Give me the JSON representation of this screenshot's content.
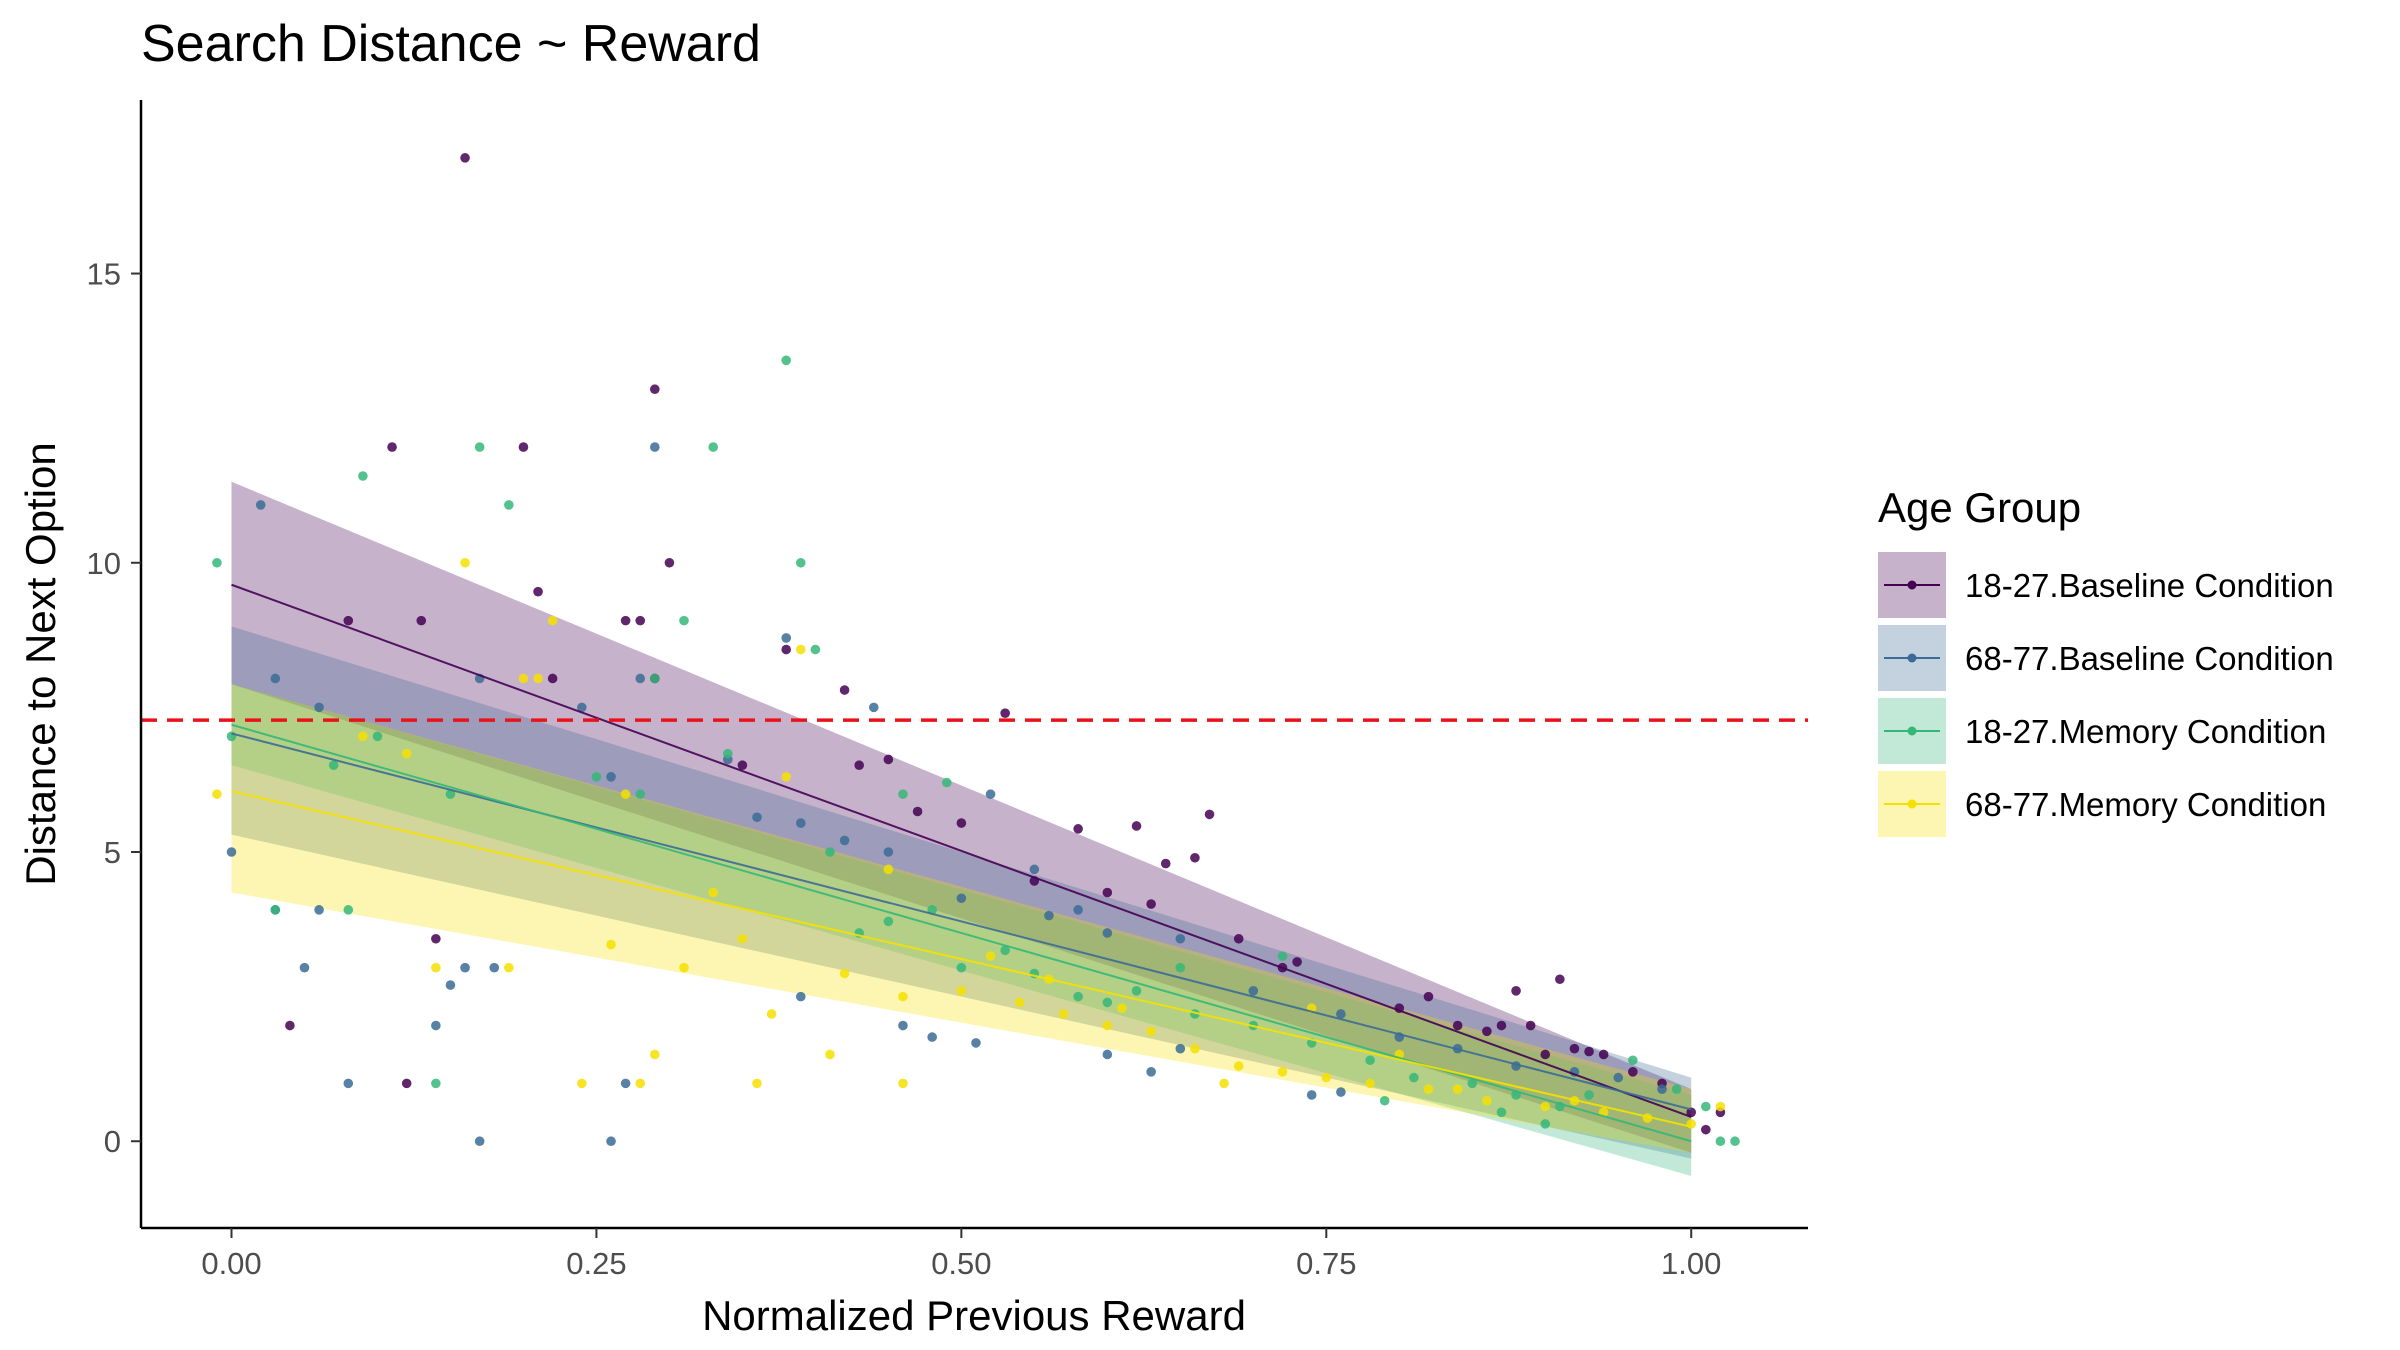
{
  "chart_data": {
    "type": "scatter",
    "title": "Search Distance ~ Reward",
    "xlabel": "Normalized Previous Reward",
    "ylabel": "Distance to Next Option",
    "xlim": [
      -0.062,
      1.08
    ],
    "ylim": [
      -1.5,
      18.0
    ],
    "x_ticks": [
      0,
      0.25,
      0.5,
      0.75,
      1.0
    ],
    "x_tick_labels": [
      "0.00",
      "0.25",
      "0.50",
      "0.75",
      "1.00"
    ],
    "y_ticks": [
      0,
      5,
      10,
      15
    ],
    "y_tick_labels": [
      "0",
      "5",
      "10",
      "15"
    ],
    "grid": false,
    "reference_line": {
      "y": 7.28,
      "style": "dashed",
      "color": "#e8141a"
    },
    "legend": {
      "title": "Age Group",
      "position": "right"
    },
    "series": [
      {
        "name": "18-27.Baseline Condition",
        "color": "#440154",
        "fit": {
          "intercept": 9.62,
          "slope": -9.2,
          "lower": [
            7.9,
            -0.2
          ],
          "upper": [
            11.4,
            0.9
          ]
        },
        "points": [
          [
            0.16,
            17.0
          ],
          [
            0.29,
            13.0
          ],
          [
            0.11,
            12.0
          ],
          [
            0.2,
            12.0
          ],
          [
            0.3,
            10.0
          ],
          [
            0.21,
            9.5
          ],
          [
            0.08,
            9.0
          ],
          [
            0.27,
            9.0
          ],
          [
            0.28,
            9.0
          ],
          [
            0.13,
            9.0
          ],
          [
            0.22,
            8.0
          ],
          [
            0.29,
            8.0
          ],
          [
            0.38,
            8.5
          ],
          [
            0.42,
            7.8
          ],
          [
            0.53,
            7.4
          ],
          [
            0.45,
            6.6
          ],
          [
            0.43,
            6.5
          ],
          [
            0.5,
            5.5
          ],
          [
            0.58,
            5.4
          ],
          [
            0.62,
            5.45
          ],
          [
            0.67,
            5.65
          ],
          [
            0.66,
            4.9
          ],
          [
            0.64,
            4.8
          ],
          [
            0.6,
            4.3
          ],
          [
            0.69,
            3.5
          ],
          [
            0.72,
            3.0
          ],
          [
            0.82,
            2.5
          ],
          [
            0.84,
            2.0
          ],
          [
            0.87,
            2.0
          ],
          [
            0.88,
            2.6
          ],
          [
            0.89,
            2.0
          ],
          [
            0.91,
            2.8
          ],
          [
            0.92,
            1.6
          ],
          [
            0.93,
            1.55
          ],
          [
            0.94,
            1.5
          ],
          [
            0.96,
            1.2
          ],
          [
            0.98,
            1.0
          ],
          [
            1.0,
            0.5
          ],
          [
            1.02,
            0.5
          ],
          [
            1.01,
            0.2
          ],
          [
            0.14,
            3.5
          ],
          [
            0.04,
            2.0
          ],
          [
            0.12,
            1.0
          ],
          [
            0.35,
            6.5
          ],
          [
            0.47,
            5.7
          ],
          [
            0.55,
            4.5
          ],
          [
            0.63,
            4.1
          ],
          [
            0.73,
            3.1
          ],
          [
            0.8,
            2.3
          ],
          [
            0.86,
            1.9
          ],
          [
            0.9,
            1.5
          ]
        ]
      },
      {
        "name": "68-77.Baseline Condition",
        "color": "#3b6b96",
        "fit": {
          "intercept": 7.05,
          "slope": -6.5,
          "lower": [
            5.3,
            -0.3
          ],
          "upper": [
            8.9,
            1.1
          ]
        },
        "points": [
          [
            0.02,
            11.0
          ],
          [
            0.29,
            12.0
          ],
          [
            0.38,
            8.7
          ],
          [
            0.03,
            8.0
          ],
          [
            0.06,
            7.5
          ],
          [
            0.44,
            7.5
          ],
          [
            0.17,
            8.0
          ],
          [
            0.28,
            8.0
          ],
          [
            0.24,
            7.5
          ],
          [
            0.26,
            6.3
          ],
          [
            0.36,
            5.6
          ],
          [
            0.39,
            5.5
          ],
          [
            0.45,
            5.0
          ],
          [
            0.52,
            6.0
          ],
          [
            0.55,
            4.7
          ],
          [
            0.0,
            5.0
          ],
          [
            0.03,
            4.0
          ],
          [
            0.06,
            4.0
          ],
          [
            0.05,
            3.0
          ],
          [
            0.15,
            2.7
          ],
          [
            0.14,
            2.0
          ],
          [
            0.18,
            3.0
          ],
          [
            0.16,
            3.0
          ],
          [
            0.08,
            1.0
          ],
          [
            0.17,
            0.0
          ],
          [
            0.26,
            0.0
          ],
          [
            0.27,
            1.0
          ],
          [
            0.39,
            2.5
          ],
          [
            0.46,
            2.0
          ],
          [
            0.48,
            1.8
          ],
          [
            0.51,
            1.7
          ],
          [
            0.6,
            1.5
          ],
          [
            0.63,
            1.2
          ],
          [
            0.65,
            1.6
          ],
          [
            0.74,
            0.8
          ],
          [
            0.76,
            0.85
          ],
          [
            0.6,
            3.6
          ],
          [
            0.58,
            4.0
          ],
          [
            0.65,
            3.5
          ],
          [
            0.7,
            2.6
          ],
          [
            0.76,
            2.2
          ],
          [
            0.8,
            1.8
          ],
          [
            0.84,
            1.6
          ],
          [
            0.88,
            1.3
          ],
          [
            0.92,
            1.2
          ],
          [
            0.95,
            1.1
          ],
          [
            0.98,
            0.9
          ],
          [
            0.34,
            6.6
          ],
          [
            0.42,
            5.2
          ],
          [
            0.5,
            4.2
          ],
          [
            0.56,
            3.9
          ]
        ]
      },
      {
        "name": "18-27.Memory Condition",
        "color": "#35b779",
        "fit": {
          "intercept": 7.2,
          "slope": -7.2,
          "lower": [
            6.5,
            -0.6
          ],
          "upper": [
            7.9,
            0.8
          ]
        },
        "points": [
          [
            -0.01,
            10.0
          ],
          [
            0.09,
            11.5
          ],
          [
            0.17,
            12.0
          ],
          [
            0.19,
            11.0
          ],
          [
            0.33,
            12.0
          ],
          [
            0.38,
            13.5
          ],
          [
            0.39,
            10.0
          ],
          [
            0.31,
            9.0
          ],
          [
            0.4,
            8.5
          ],
          [
            0.0,
            7.0
          ],
          [
            0.07,
            6.5
          ],
          [
            0.1,
            7.0
          ],
          [
            0.15,
            6.0
          ],
          [
            0.25,
            6.3
          ],
          [
            0.28,
            6.0
          ],
          [
            0.34,
            6.7
          ],
          [
            0.41,
            5.0
          ],
          [
            0.46,
            6.0
          ],
          [
            0.49,
            6.2
          ],
          [
            0.08,
            4.0
          ],
          [
            0.14,
            1.0
          ],
          [
            0.03,
            4.0
          ],
          [
            0.29,
            8.0
          ],
          [
            0.45,
            3.8
          ],
          [
            0.5,
            3.0
          ],
          [
            0.55,
            2.9
          ],
          [
            0.58,
            2.5
          ],
          [
            0.62,
            2.6
          ],
          [
            0.66,
            2.2
          ],
          [
            0.7,
            2.0
          ],
          [
            0.74,
            1.7
          ],
          [
            0.78,
            1.4
          ],
          [
            0.81,
            1.1
          ],
          [
            0.85,
            1.0
          ],
          [
            0.88,
            0.8
          ],
          [
            0.91,
            0.6
          ],
          [
            0.93,
            0.8
          ],
          [
            0.96,
            1.4
          ],
          [
            0.99,
            0.9
          ],
          [
            1.01,
            0.6
          ],
          [
            1.02,
            0.0
          ],
          [
            1.03,
            0.0
          ],
          [
            0.87,
            0.5
          ],
          [
            0.9,
            0.3
          ],
          [
            0.79,
            0.7
          ],
          [
            0.65,
            3.0
          ],
          [
            0.6,
            2.4
          ],
          [
            0.53,
            3.3
          ],
          [
            0.48,
            4.0
          ],
          [
            0.43,
            3.6
          ],
          [
            0.72,
            3.2
          ]
        ]
      },
      {
        "name": "68-77.Memory Condition",
        "color": "#f5e100",
        "fit": {
          "intercept": 6.05,
          "slope": -5.8,
          "lower": [
            4.3,
            -0.2
          ],
          "upper": [
            7.9,
            0.9
          ]
        },
        "points": [
          [
            -0.01,
            6.0
          ],
          [
            0.16,
            10.0
          ],
          [
            0.22,
            9.0
          ],
          [
            0.21,
            8.0
          ],
          [
            0.39,
            8.5
          ],
          [
            0.38,
            6.3
          ],
          [
            0.27,
            6.0
          ],
          [
            0.12,
            6.7
          ],
          [
            0.14,
            3.0
          ],
          [
            0.19,
            3.0
          ],
          [
            0.26,
            3.4
          ],
          [
            0.31,
            3.0
          ],
          [
            0.24,
            1.0
          ],
          [
            0.28,
            1.0
          ],
          [
            0.29,
            1.5
          ],
          [
            0.37,
            2.2
          ],
          [
            0.36,
            1.0
          ],
          [
            0.41,
            1.5
          ],
          [
            0.46,
            1.0
          ],
          [
            0.42,
            2.9
          ],
          [
            0.46,
            2.5
          ],
          [
            0.5,
            2.6
          ],
          [
            0.54,
            2.4
          ],
          [
            0.57,
            2.2
          ],
          [
            0.6,
            2.0
          ],
          [
            0.63,
            1.9
          ],
          [
            0.66,
            1.6
          ],
          [
            0.69,
            1.3
          ],
          [
            0.72,
            1.2
          ],
          [
            0.75,
            1.1
          ],
          [
            0.78,
            1.0
          ],
          [
            0.82,
            0.9
          ],
          [
            0.86,
            0.7
          ],
          [
            0.9,
            0.6
          ],
          [
            0.94,
            0.5
          ],
          [
            0.97,
            0.4
          ],
          [
            1.0,
            0.3
          ],
          [
            1.02,
            0.6
          ],
          [
            0.33,
            4.3
          ],
          [
            0.35,
            3.5
          ],
          [
            0.45,
            4.7
          ],
          [
            0.52,
            3.2
          ],
          [
            0.56,
            2.8
          ],
          [
            0.61,
            2.3
          ],
          [
            0.68,
            1.0
          ],
          [
            0.74,
            2.3
          ],
          [
            0.8,
            1.5
          ],
          [
            0.84,
            0.9
          ],
          [
            0.92,
            0.7
          ],
          [
            0.2,
            8.0
          ],
          [
            0.09,
            7.0
          ]
        ]
      }
    ]
  }
}
